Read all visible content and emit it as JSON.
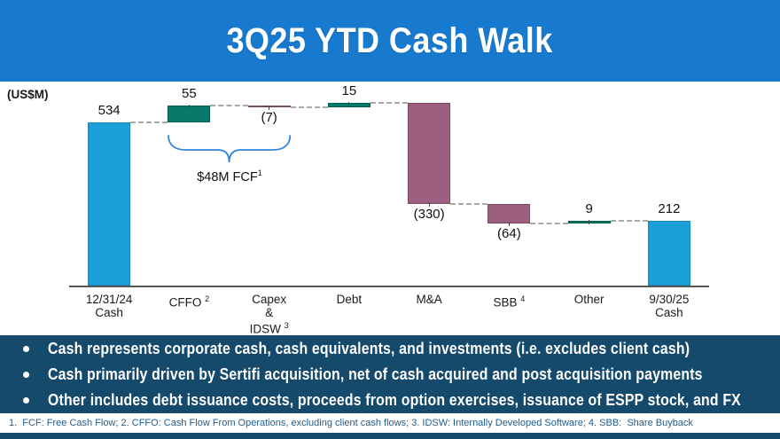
{
  "header": {
    "title": "3Q25 YTD Cash Walk"
  },
  "chart_data": {
    "type": "bar",
    "variant": "waterfall",
    "title": "3Q25 YTD Cash Walk",
    "units_label": "(US$M)",
    "xlabel": "",
    "ylabel": "US$M",
    "ylim": [
      0,
      640
    ],
    "grid": false,
    "categories": [
      "12/31/24 Cash",
      "CFFO",
      "Capex & IDSW",
      "Debt",
      "M&A",
      "SBB",
      "Other",
      "9/30/25 Cash"
    ],
    "bars": [
      {
        "category_lines": [
          "12/31/24",
          "Cash"
        ],
        "sup": "",
        "value": 534,
        "display": "534",
        "kind": "total"
      },
      {
        "category_lines": [
          "CFFO"
        ],
        "sup": "2",
        "value": 55,
        "display": "55",
        "kind": "increase"
      },
      {
        "category_lines": [
          "Capex",
          "&",
          "IDSW"
        ],
        "sup": "3",
        "value": -7,
        "display": "(7)",
        "kind": "decrease"
      },
      {
        "category_lines": [
          "Debt"
        ],
        "sup": "",
        "value": 15,
        "display": "15",
        "kind": "increase"
      },
      {
        "category_lines": [
          "M&A"
        ],
        "sup": "",
        "value": -330,
        "display": "(330)",
        "kind": "decrease"
      },
      {
        "category_lines": [
          "SBB"
        ],
        "sup": "4",
        "value": -64,
        "display": "(64)",
        "kind": "decrease"
      },
      {
        "category_lines": [
          "Other"
        ],
        "sup": "",
        "value": 9,
        "display": "9",
        "kind": "increase"
      },
      {
        "category_lines": [
          "9/30/25",
          "Cash"
        ],
        "sup": "",
        "value": 212,
        "display": "212",
        "kind": "total"
      }
    ],
    "annotation": {
      "text": "$48M FCF",
      "sup": "1",
      "span_from_index": 1,
      "span_to_index": 2
    },
    "colors": {
      "total": "#1B9FD9",
      "total_border": "#1389C0",
      "increase": "#087A6A",
      "increase_border": "#045F53",
      "decrease": "#9C5F7F",
      "decrease_border": "#7A4A64",
      "brace": "#2E86D8",
      "connector": "#A8A8A8",
      "axis": "#555555"
    }
  },
  "notes": {
    "bullets": [
      {
        "text": "Cash represents corporate cash, cash equivalents, and investments (i.e. excludes client cash)"
      },
      {
        "text": "Cash primarily driven by Sertifi acquisition, net of cash acquired and post acquisition payments"
      },
      {
        "text": "Other includes debt issuance costs, proceeds from option exercises, issuance of ESPP stock, and FX"
      }
    ]
  },
  "footnote": {
    "text": "1.  FCF: Free Cash Flow; 2. CFFO: Cash Flow From Operations, excluding client cash flows; 3. IDSW: Internally Developed Software; 4. SBB:  Share Buyback"
  },
  "theme": {
    "header_bg": "#187ACF",
    "notes_bg": "#154A6C",
    "footnote_color": "#1F5C8C"
  }
}
